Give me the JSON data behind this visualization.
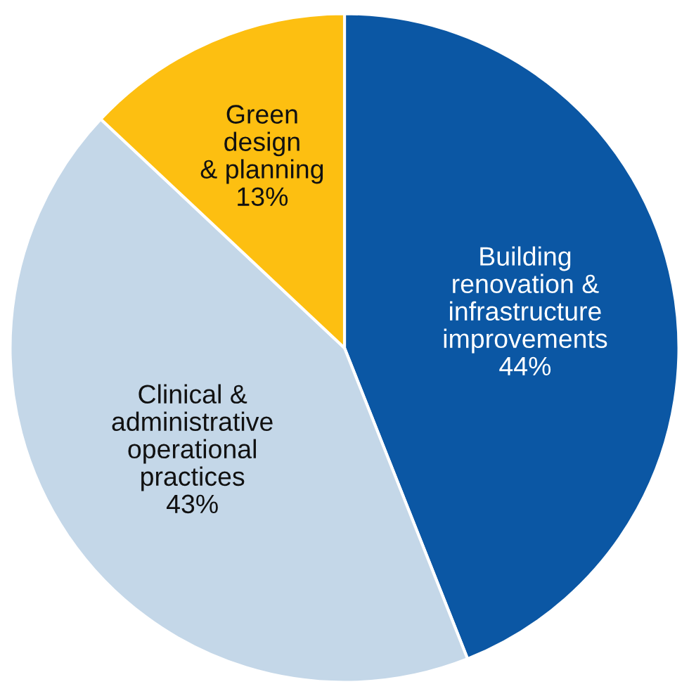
{
  "chart_data": {
    "type": "pie",
    "categories": [
      "Building\nrenovation &\ninfrastructure\nimprovements",
      "Clinical &\nadministrative\noperational\npractices",
      "Green\ndesign\n& planning"
    ],
    "values": [
      44,
      43,
      13
    ],
    "colors": [
      "#0b57a4",
      "#c4d7e8",
      "#fdbf11"
    ],
    "value_labels": [
      "44%",
      "43%",
      "13%"
    ]
  }
}
